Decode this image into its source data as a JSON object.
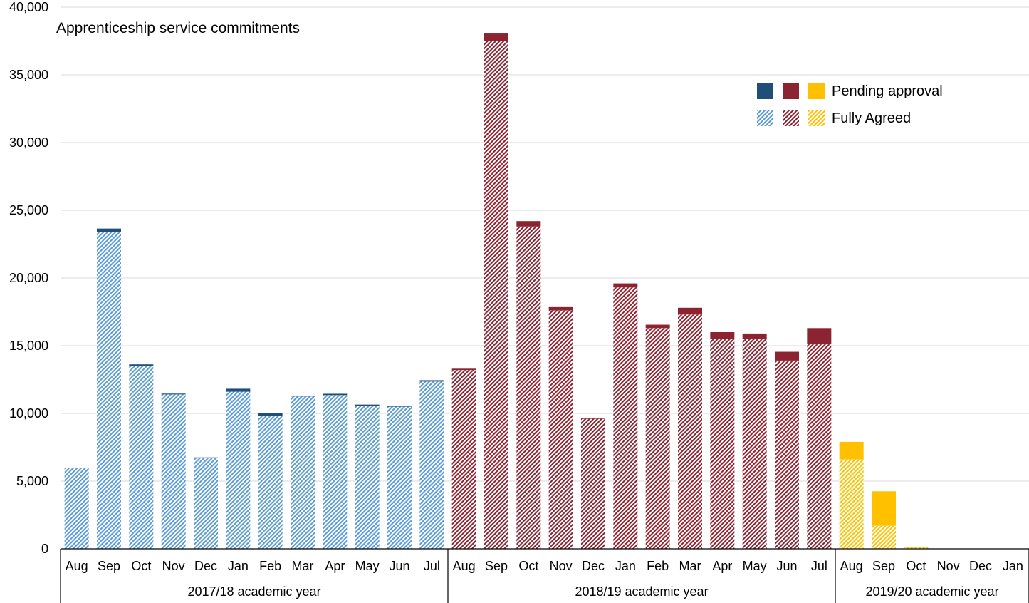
{
  "chart_data": {
    "type": "bar",
    "stacked": true,
    "title": "Apprenticeship service commitments",
    "ylim": [
      0,
      40000
    ],
    "yticks": [
      "0",
      "5,000",
      "10,000",
      "15,000",
      "20,000",
      "25,000",
      "30,000",
      "35,000",
      "40,000"
    ],
    "ytick_values": [
      0,
      5000,
      10000,
      15000,
      20000,
      25000,
      30000,
      35000,
      40000
    ],
    "grid": true,
    "legend_position": "top-right",
    "legend": [
      {
        "label": "Pending approval",
        "style": "solid"
      },
      {
        "label": "Fully Agreed",
        "style": "hatched"
      }
    ],
    "categories": [
      "Aug",
      "Sep",
      "Oct",
      "Nov",
      "Dec",
      "Jan",
      "Feb",
      "Mar",
      "Apr",
      "May",
      "Jun",
      "Jul",
      "Aug",
      "Sep",
      "Oct",
      "Nov",
      "Dec",
      "Jan",
      "Feb",
      "Mar",
      "Apr",
      "May",
      "Jun",
      "Jul",
      "Aug",
      "Sep",
      "Oct",
      "Nov",
      "Dec",
      "Jan"
    ],
    "groups": [
      {
        "label": "2017/18 academic year",
        "start": 0,
        "count": 12,
        "color": "#1F4E79",
        "hatch_color": "#5B9BD5"
      },
      {
        "label": "2018/19 academic year",
        "start": 12,
        "count": 12,
        "color": "#8B2430",
        "hatch_color": "#8B2430"
      },
      {
        "label": "2019/20 academic year",
        "start": 24,
        "count": 6,
        "color": "#FFC000",
        "hatch_color": "#FFC000"
      }
    ],
    "series": [
      {
        "name": "Fully Agreed",
        "values": [
          5950,
          23400,
          13500,
          11400,
          6700,
          11600,
          9800,
          11250,
          11350,
          10550,
          10500,
          12350,
          13200,
          37500,
          23800,
          17600,
          9600,
          19300,
          16300,
          17300,
          15500,
          15500,
          13900,
          15100,
          6600,
          1700,
          80,
          0,
          0,
          0
        ]
      },
      {
        "name": "Pending approval",
        "values": [
          50,
          250,
          120,
          60,
          50,
          220,
          220,
          50,
          100,
          100,
          50,
          100,
          100,
          550,
          400,
          250,
          70,
          300,
          250,
          500,
          500,
          400,
          650,
          1200,
          1300,
          2550,
          50,
          0,
          0,
          0
        ]
      }
    ]
  }
}
